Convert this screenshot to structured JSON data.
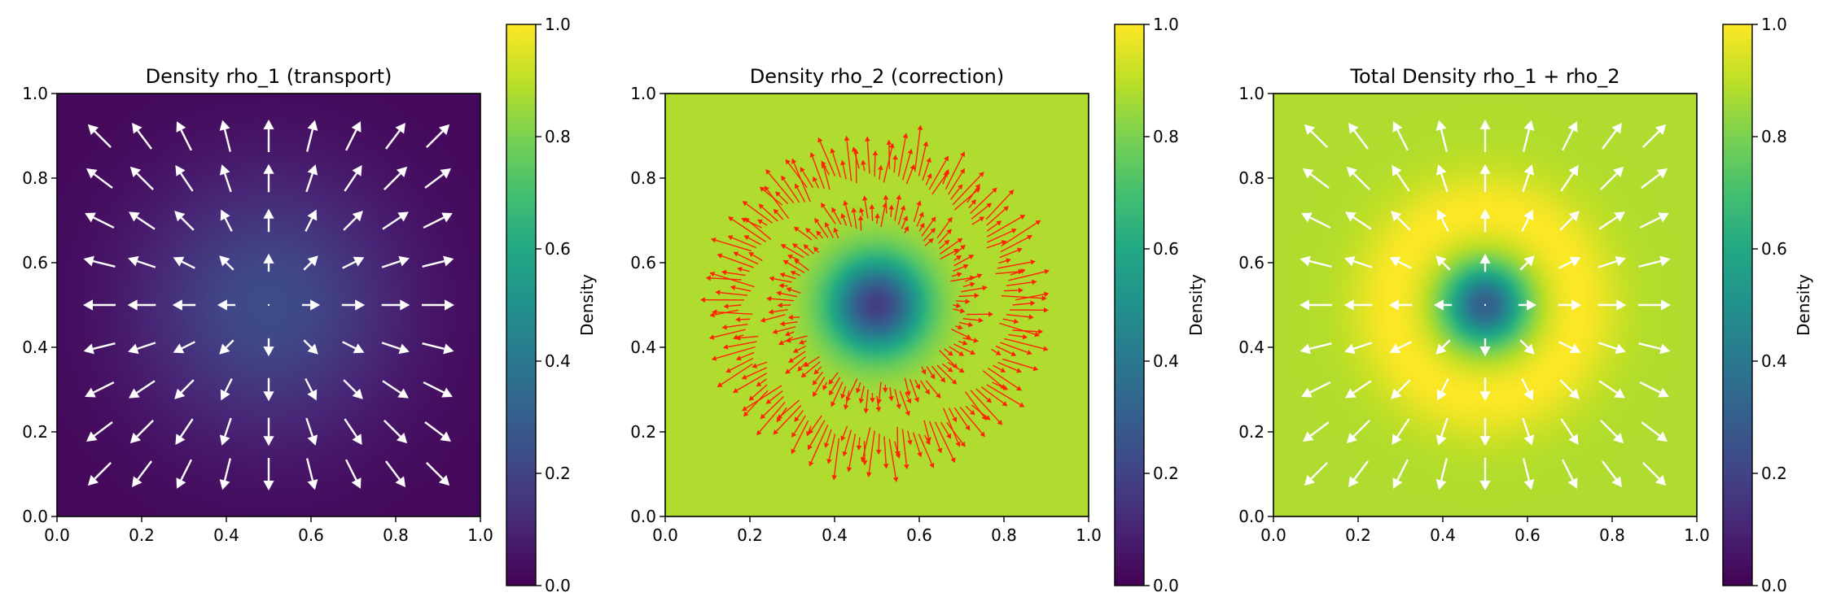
{
  "chart_data": [
    {
      "type": "heatmap",
      "title": "Density rho_1 (transport)",
      "field": "rho_1",
      "overlay": "quiver",
      "arrow_color": "#ffffff",
      "xlim": [
        0,
        1
      ],
      "ylim": [
        0,
        1
      ],
      "xticks": [
        "0.0",
        "0.2",
        "0.4",
        "0.6",
        "0.8",
        "1.0"
      ],
      "yticks": [
        "0.0",
        "0.2",
        "0.4",
        "0.6",
        "0.8",
        "1.0"
      ],
      "colorbar": {
        "label": "Density",
        "range": [
          0,
          1
        ],
        "ticks": [
          "0.0",
          "0.2",
          "0.4",
          "0.6",
          "0.8",
          "1.0"
        ],
        "colormap": "viridis"
      },
      "center_value": 0.23,
      "edge_value": 0.02
    },
    {
      "type": "heatmap",
      "title": "Density rho_2 (correction)",
      "field": "rho_2",
      "overlay": "quiver",
      "arrow_color": "#ff2200",
      "xlim": [
        0,
        1
      ],
      "ylim": [
        0,
        1
      ],
      "xticks": [
        "0.0",
        "0.2",
        "0.4",
        "0.6",
        "0.8",
        "1.0"
      ],
      "yticks": [
        "0.0",
        "0.2",
        "0.4",
        "0.6",
        "0.8",
        "1.0"
      ],
      "colorbar": {
        "label": "Density",
        "range": [
          0,
          1
        ],
        "ticks": [
          "0.0",
          "0.2",
          "0.4",
          "0.6",
          "0.8",
          "1.0"
        ],
        "colormap": "viridis"
      },
      "center_value": 0.18,
      "background_value": 0.88
    },
    {
      "type": "heatmap",
      "title": "Total Density rho_1 + rho_2",
      "field": "total",
      "overlay": "quiver",
      "arrow_color": "#ffffff",
      "xlim": [
        0,
        1
      ],
      "ylim": [
        0,
        1
      ],
      "xticks": [
        "0.0",
        "0.2",
        "0.4",
        "0.6",
        "0.8",
        "1.0"
      ],
      "yticks": [
        "0.0",
        "0.2",
        "0.4",
        "0.6",
        "0.8",
        "1.0"
      ],
      "colorbar": {
        "label": "Density",
        "range": [
          0,
          1
        ],
        "ticks": [
          "0.0",
          "0.2",
          "0.4",
          "0.6",
          "0.8",
          "1.0"
        ],
        "colormap": "viridis"
      },
      "center_value": 0.42,
      "ring_value": 1.0,
      "background_value": 0.88
    }
  ]
}
